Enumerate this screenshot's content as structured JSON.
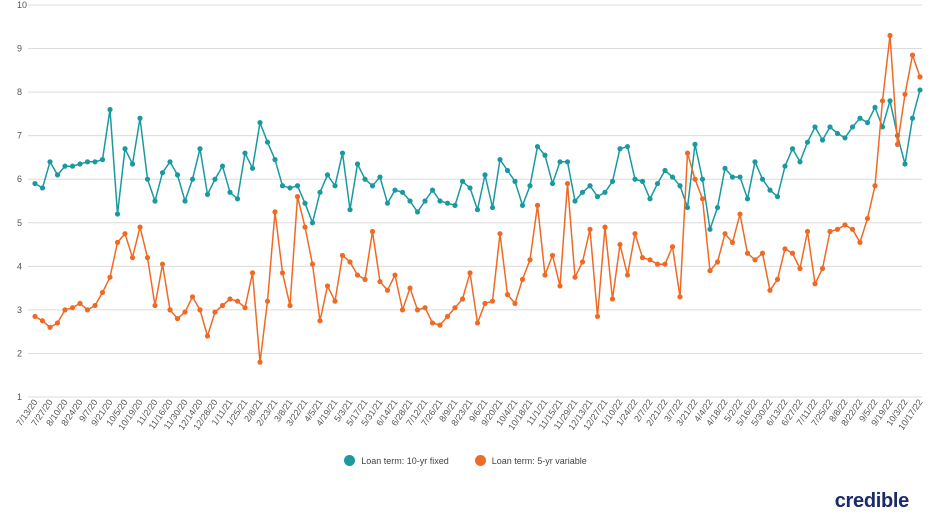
{
  "chart_data": {
    "type": "line",
    "title": "",
    "xlabel": "",
    "ylabel": "",
    "ylim": [
      1,
      10
    ],
    "yticks": [
      1,
      2,
      3,
      4,
      5,
      6,
      7,
      8,
      9,
      10
    ],
    "grid": "horizontal",
    "legend_position": "bottom-center",
    "x_tick_labels": [
      "7/13/20",
      "7/27/20",
      "8/10/20",
      "8/24/20",
      "9/7/20",
      "9/21/20",
      "10/5/20",
      "10/19/20",
      "11/2/20",
      "11/16/20",
      "11/30/20",
      "12/14/20",
      "12/28/20",
      "1/11/21",
      "1/25/21",
      "2/8/21",
      "2/23/21",
      "3/8/21",
      "3/22/21",
      "4/5/21",
      "4/19/21",
      "5/3/21",
      "5/17/21",
      "5/31/21",
      "6/14/21",
      "6/28/21",
      "7/12/21",
      "7/26/21",
      "8/9/21",
      "8/23/21",
      "9/6/21",
      "9/20/21",
      "10/4/21",
      "10/18/21",
      "11/1/21",
      "11/15/21",
      "11/29/21",
      "12/13/21",
      "12/27/21",
      "1/10/22",
      "1/24/22",
      "2/7/22",
      "2/21/22",
      "3/7/22",
      "3/21/22",
      "4/4/22",
      "4/18/22",
      "5/2/22",
      "5/16/22",
      "5/30/22",
      "6/13/22",
      "6/27/22",
      "7/11/22",
      "7/25/22",
      "8/8/22",
      "8/22/22",
      "9/5/22",
      "9/19/22",
      "10/3/22",
      "10/17/22"
    ],
    "series": [
      {
        "name": "Loan term: 10-yr fixed",
        "color": "#1a9aa0",
        "values": [
          5.9,
          5.8,
          6.4,
          6.1,
          6.3,
          6.3,
          6.35,
          6.4,
          6.4,
          6.45,
          7.6,
          5.2,
          6.7,
          6.35,
          7.4,
          6.0,
          5.5,
          6.15,
          6.4,
          6.1,
          5.5,
          6.0,
          6.7,
          5.65,
          6.0,
          6.3,
          5.7,
          5.55,
          6.6,
          6.25,
          7.3,
          6.85,
          6.45,
          5.85,
          5.8,
          5.85,
          5.45,
          5.0,
          5.7,
          6.1,
          5.85,
          6.6,
          5.3,
          6.35,
          6.0,
          5.85,
          6.05,
          5.45,
          5.75,
          5.7,
          5.5,
          5.25,
          5.5,
          5.75,
          5.5,
          5.45,
          5.4,
          5.95,
          5.8,
          5.3,
          6.1,
          5.35,
          6.45,
          6.2,
          5.95,
          5.4,
          5.85,
          6.75,
          6.55,
          5.9,
          6.4,
          6.4,
          5.5,
          5.7,
          5.85,
          5.6,
          5.7,
          5.95,
          6.7,
          6.75,
          6.0,
          5.95,
          5.55,
          5.9,
          6.2,
          6.05,
          5.85,
          5.35,
          6.8,
          6.0,
          4.85,
          5.35,
          6.25,
          6.05,
          6.05,
          5.55,
          6.4,
          6.0,
          5.75,
          5.6,
          6.3,
          6.7,
          6.4,
          6.85,
          7.2,
          6.9,
          7.2,
          7.05,
          6.95,
          7.2,
          7.4,
          7.3,
          7.65,
          7.2,
          7.8,
          7.0,
          6.35,
          7.4,
          8.05
        ]
      },
      {
        "name": "Loan term: 5-yr variable",
        "color": "#ef6a25",
        "values": [
          2.85,
          2.75,
          2.6,
          2.7,
          3.0,
          3.05,
          3.15,
          3.0,
          3.1,
          3.4,
          3.75,
          4.55,
          4.75,
          4.2,
          4.9,
          4.2,
          3.1,
          4.05,
          3.0,
          2.8,
          2.95,
          3.3,
          3.0,
          2.4,
          2.95,
          3.1,
          3.25,
          3.2,
          3.05,
          3.85,
          1.8,
          3.2,
          5.25,
          3.85,
          3.1,
          5.6,
          4.9,
          4.05,
          2.75,
          3.55,
          3.2,
          4.25,
          4.1,
          3.8,
          3.7,
          4.8,
          3.65,
          3.45,
          3.8,
          3.0,
          3.5,
          3.0,
          3.05,
          2.7,
          2.65,
          2.85,
          3.05,
          3.25,
          3.85,
          2.7,
          3.15,
          3.2,
          4.75,
          3.35,
          3.15,
          3.7,
          4.15,
          5.4,
          3.8,
          4.25,
          3.55,
          5.9,
          3.75,
          4.1,
          4.85,
          2.85,
          4.9,
          3.25,
          4.5,
          3.8,
          4.75,
          4.2,
          4.15,
          4.05,
          4.05,
          4.45,
          3.3,
          6.6,
          6.0,
          5.55,
          3.9,
          4.1,
          4.75,
          4.55,
          5.2,
          4.3,
          4.15,
          4.3,
          3.45,
          3.7,
          4.4,
          4.3,
          3.95,
          4.8,
          3.6,
          3.95,
          4.8,
          4.85,
          4.95,
          4.85,
          4.55,
          5.1,
          5.85,
          7.8,
          9.3,
          6.8,
          7.95,
          8.85,
          8.35
        ]
      }
    ]
  },
  "legend": {
    "items": [
      {
        "label": "Loan term: 10-yr fixed",
        "color": "#1a9aa0"
      },
      {
        "label": "Loan term: 5-yr variable",
        "color": "#ef6a25"
      }
    ]
  },
  "brand": {
    "logo_text": "credible"
  }
}
